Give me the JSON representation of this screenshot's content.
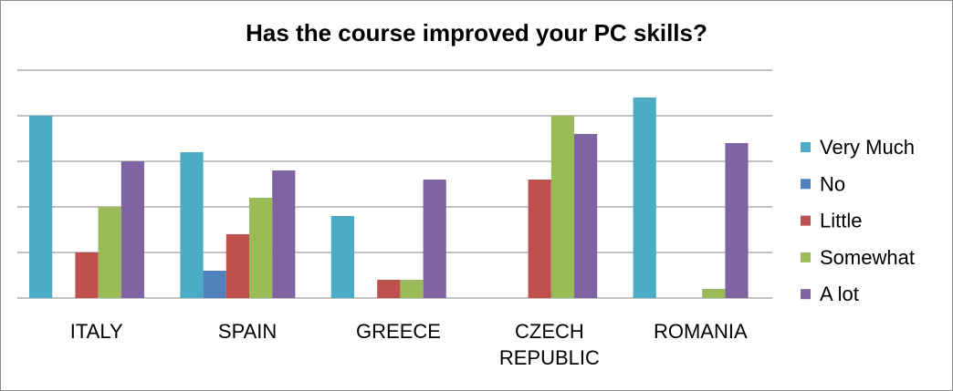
{
  "chart_data": {
    "type": "bar",
    "title": "Has the course improved your PC skills?",
    "xlabel": "",
    "ylabel": "",
    "ylim": [
      0,
      25
    ],
    "grid": true,
    "legend_position": "right",
    "categories": [
      [
        "ITALY"
      ],
      [
        "SPAIN"
      ],
      [
        "GREECE"
      ],
      [
        "CZECH",
        "REPUBLIC"
      ],
      [
        "ROMANIA"
      ]
    ],
    "series": [
      {
        "name": "Very Much",
        "color": "#4bacc6",
        "values": [
          20,
          16,
          9,
          0,
          22
        ]
      },
      {
        "name": "No",
        "color": "#4f81bd",
        "values": [
          0,
          3,
          0,
          0,
          0
        ]
      },
      {
        "name": "Little",
        "color": "#c0504d",
        "values": [
          5,
          7,
          2,
          13,
          0
        ]
      },
      {
        "name": "Somewhat",
        "color": "#9bbb59",
        "values": [
          10,
          11,
          2,
          20,
          1
        ]
      },
      {
        "name": "A lot",
        "color": "#8064a2",
        "values": [
          15,
          14,
          13,
          18,
          17
        ]
      }
    ]
  }
}
